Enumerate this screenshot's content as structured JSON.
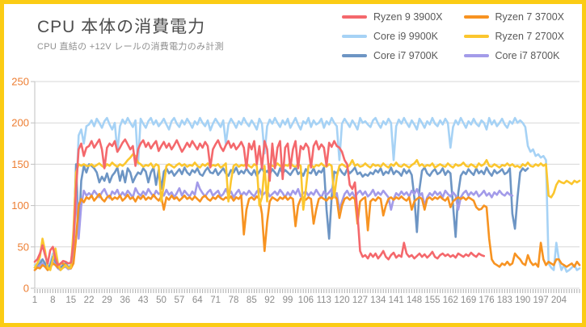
{
  "title": "CPU 本体の消費電力",
  "subtitle": "CPU 直結の +12V レールの消費電力のみ計測",
  "colors": {
    "frame_border": "#FBCC14",
    "background": "#ffffff",
    "title_text": "#4d4d4d",
    "subtitle_text": "#8f8f8f",
    "legend_text": "#595959",
    "y_axis_labels": "#ED7D31",
    "x_axis_labels": "#8c8c8c",
    "gridline": "#d7d7d7",
    "axis_line": "#c0c0c0",
    "tick": "#ababab"
  },
  "chart_data": {
    "type": "line",
    "title": "CPU 本体の消費電力",
    "subtitle": "CPU 直結の +12V レールの消費電力のみ計測",
    "xlabel": "",
    "ylabel": "",
    "unit_hint": "watts on +12V CPU rail, x = sample number (seconds)",
    "ymin": 0,
    "ymax": 250,
    "yticks": [
      0,
      50,
      100,
      150,
      200,
      250
    ],
    "n_samples": 212,
    "xtick_labels": [
      1,
      8,
      15,
      22,
      29,
      36,
      43,
      50,
      57,
      64,
      71,
      78,
      85,
      92,
      99,
      106,
      113,
      120,
      127,
      134,
      141,
      148,
      155,
      162,
      169,
      176,
      183,
      190,
      197,
      204
    ],
    "grid": true,
    "legend_position": "top-right",
    "stroke_width": 2.6,
    "draw_order": [
      2,
      4,
      5,
      1,
      3,
      0
    ],
    "series": [
      {
        "name": "Ryzen 9 3900X",
        "color": "#F4686C",
        "values": [
          32,
          35,
          42,
          52,
          40,
          30,
          46,
          50,
          36,
          28,
          30,
          33,
          32,
          30,
          31,
          55,
          120,
          168,
          175,
          160,
          170,
          172,
          178,
          170,
          175,
          180,
          168,
          145,
          170,
          175,
          172,
          178,
          165,
          170,
          176,
          180,
          174,
          168,
          172,
          148,
          168,
          175,
          179,
          171,
          176,
          169,
          174,
          178,
          166,
          172,
          177,
          170,
          175,
          168,
          173,
          179,
          172,
          165,
          170,
          176,
          171,
          178,
          173,
          168,
          175,
          170,
          177,
          172,
          146,
          168,
          174,
          179,
          171,
          166,
          173,
          178,
          170,
          175,
          168,
          172,
          177,
          170,
          145,
          175,
          168,
          178,
          150,
          172,
          145,
          178,
          168,
          130,
          175,
          145,
          170,
          178,
          132,
          170,
          175,
          145,
          168,
          178,
          145,
          172,
          168,
          175,
          170,
          146,
          172,
          178,
          168,
          174,
          170,
          148,
          176,
          171,
          178,
          172,
          170,
          165,
          155,
          150,
          125,
          120,
          128,
          90,
          45,
          38,
          40,
          36,
          42,
          38,
          42,
          36,
          40,
          45,
          38,
          35,
          40,
          43,
          37,
          40,
          38,
          55,
          42,
          38,
          40,
          36,
          39,
          42,
          38,
          41,
          37,
          40,
          44,
          38,
          36,
          40,
          42,
          39,
          41,
          38,
          40,
          37,
          42,
          40,
          38,
          41,
          39,
          43,
          40,
          38,
          42,
          40,
          39
        ]
      },
      {
        "name": "Ryzen 7 3700X",
        "color": "#F79321",
        "values": [
          22,
          25,
          24,
          28,
          26,
          22,
          25,
          30,
          28,
          25,
          30,
          30,
          28,
          25,
          24,
          30,
          60,
          100,
          108,
          104,
          110,
          108,
          112,
          106,
          110,
          114,
          108,
          105,
          110,
          112,
          107,
          110,
          108,
          112,
          106,
          109,
          113,
          108,
          110,
          105,
          111,
          108,
          112,
          107,
          110,
          108,
          113,
          109,
          106,
          111,
          95,
          110,
          107,
          112,
          108,
          110,
          106,
          109,
          112,
          108,
          110,
          107,
          111,
          108,
          105,
          110,
          112,
          108,
          106,
          110,
          108,
          112,
          109,
          107,
          110,
          108,
          111,
          106,
          110,
          108,
          112,
          65,
          95,
          108,
          110,
          107,
          111,
          108,
          90,
          45,
          80,
          105,
          110,
          108,
          106,
          110,
          108,
          111,
          107,
          110,
          108,
          75,
          100,
          108,
          110,
          107,
          110,
          108,
          78,
          95,
          108,
          110,
          108,
          106,
          110,
          108,
          112,
          108,
          85,
          100,
          108,
          110,
          107,
          110,
          108,
          78,
          105,
          108,
          110,
          70,
          105,
          108,
          106,
          110,
          108,
          88,
          100,
          108,
          110,
          107,
          110,
          108,
          111,
          108,
          106,
          110,
          95,
          105,
          108,
          110,
          108,
          95,
          108,
          110,
          107,
          110,
          108,
          111,
          108,
          106,
          110,
          98,
          105,
          108,
          110,
          108,
          110,
          107,
          110,
          108,
          106,
          98,
          95,
          96,
          100,
          98,
          60,
          35,
          30,
          28,
          26,
          30,
          28,
          32,
          28,
          30,
          42,
          38,
          35,
          30,
          28,
          40,
          32,
          28,
          30,
          26,
          55,
          35,
          28,
          32,
          30,
          28,
          35,
          35,
          30,
          28,
          26,
          28,
          30,
          26,
          32,
          28
        ]
      },
      {
        "name": "Core i9 9900K",
        "color": "#A6D2F5",
        "values": [
          28,
          30,
          34,
          30,
          28,
          26,
          30,
          42,
          32,
          26,
          25,
          28,
          30,
          26,
          28,
          45,
          110,
          185,
          192,
          175,
          196,
          198,
          203,
          196,
          205,
          200,
          194,
          202,
          206,
          198,
          192,
          200,
          165,
          196,
          204,
          199,
          206,
          200,
          195,
          203,
          150,
          205,
          199,
          194,
          202,
          206,
          198,
          203,
          196,
          200,
          205,
          198,
          192,
          202,
          206,
          199,
          195,
          203,
          198,
          205,
          200,
          194,
          202,
          198,
          206,
          200,
          196,
          203,
          191,
          199,
          205,
          200,
          195,
          203,
          175,
          198,
          205,
          200,
          194,
          202,
          198,
          206,
          200,
          196,
          203,
          198,
          192,
          205,
          199,
          163,
          196,
          204,
          199,
          206,
          200,
          195,
          203,
          198,
          205,
          194,
          200,
          206,
          198,
          192,
          202,
          199,
          206,
          195,
          203,
          198,
          200,
          205,
          194,
          202,
          198,
          206,
          200,
          196,
          155,
          199,
          205,
          200,
          195,
          203,
          198,
          192,
          206,
          200,
          202,
          198,
          195,
          203,
          206,
          199,
          194,
          202,
          198,
          205,
          200,
          155,
          196,
          204,
          199,
          206,
          200,
          195,
          203,
          198,
          192,
          205,
          200,
          194,
          202,
          198,
          206,
          199,
          196,
          203,
          198,
          205,
          200,
          170,
          195,
          203,
          198,
          206,
          200,
          194,
          202,
          198,
          205,
          199,
          196,
          203,
          200,
          192,
          206,
          198,
          203,
          196,
          200,
          205,
          198,
          194,
          202,
          199,
          206,
          200,
          203,
          200,
          195,
          172,
          165,
          168,
          160,
          162,
          158,
          160,
          155,
          30,
          25,
          22,
          55,
          35,
          22,
          28,
          20,
          22,
          25,
          28,
          22,
          24
        ]
      },
      {
        "name": "Ryzen 7 2700X",
        "color": "#FBC62E",
        "values": [
          25,
          30,
          38,
          60,
          45,
          25,
          22,
          35,
          48,
          30,
          22,
          25,
          28,
          24,
          25,
          70,
          140,
          150,
          148,
          150,
          148,
          148,
          150,
          147,
          149,
          151,
          148,
          146,
          150,
          148,
          152,
          149,
          147,
          150,
          148,
          151,
          155,
          158,
          162,
          160,
          152,
          150,
          147,
          149,
          148,
          151,
          146,
          150,
          148,
          105,
          125,
          148,
          150,
          148,
          146,
          149,
          151,
          148,
          150,
          147,
          149,
          148,
          152,
          148,
          146,
          150,
          148,
          151,
          147,
          149,
          148,
          150,
          146,
          148,
          151,
          105,
          130,
          148,
          150,
          147,
          149,
          148,
          151,
          148,
          146,
          150,
          148,
          100,
          110,
          148,
          105,
          150,
          148,
          147,
          151,
          148,
          146,
          149,
          148,
          152,
          148,
          147,
          150,
          148,
          95,
          120,
          148,
          150,
          146,
          149,
          148,
          151,
          148,
          147,
          150,
          148,
          110,
          135,
          148,
          150,
          148,
          146,
          149,
          155,
          148,
          150,
          147,
          148,
          151,
          148,
          146,
          150,
          148,
          149,
          147,
          151,
          148,
          146,
          150,
          148,
          152,
          148,
          147,
          150,
          148,
          146,
          149,
          151,
          155,
          148,
          150,
          147,
          149,
          148,
          151,
          146,
          148,
          150,
          148,
          147,
          151,
          148,
          146,
          150,
          148,
          149,
          152,
          148,
          147,
          150,
          148,
          146,
          151,
          148,
          150,
          155,
          148,
          147,
          150,
          148,
          146,
          149,
          148,
          151,
          148,
          150,
          147,
          148,
          146,
          150,
          148,
          152,
          148,
          147,
          150,
          148,
          151,
          148,
          150,
          112,
          110,
          115,
          125,
          130,
          128,
          127,
          130,
          128,
          126,
          130,
          128,
          130
        ]
      },
      {
        "name": "Core i7 9700K",
        "color": "#6D95C4",
        "values": [
          25,
          28,
          30,
          35,
          30,
          25,
          28,
          38,
          32,
          26,
          25,
          28,
          30,
          25,
          26,
          55,
          150,
          65,
          130,
          148,
          140,
          150,
          148,
          145,
          140,
          128,
          135,
          130,
          139,
          128,
          136,
          140,
          146,
          130,
          142,
          128,
          145,
          140,
          128,
          135,
          140,
          138,
          145,
          141,
          128,
          140,
          146,
          125,
          143,
          120,
          141,
          145,
          139,
          142,
          136,
          140,
          144,
          138,
          146,
          140,
          137,
          143,
          140,
          145,
          138,
          136,
          142,
          146,
          140,
          139,
          144,
          137,
          141,
          145,
          139,
          136,
          143,
          140,
          146,
          138,
          142,
          139,
          145,
          140,
          137,
          143,
          136,
          141,
          146,
          139,
          142,
          138,
          144,
          140,
          136,
          145,
          139,
          143,
          140,
          137,
          142,
          146,
          138,
          141,
          136,
          144,
          140,
          139,
          145,
          137,
          142,
          140,
          146,
          95,
          60,
          110,
          141,
          139,
          145,
          140,
          137,
          144,
          139,
          142,
          146,
          138,
          140,
          135,
          138,
          136,
          140,
          138,
          143,
          140,
          145,
          137,
          141,
          139,
          146,
          138,
          142,
          140,
          136,
          144,
          139,
          143,
          137,
          110,
          68,
          120,
          142,
          146,
          139,
          136,
          141,
          144,
          138,
          140,
          145,
          137,
          142,
          139,
          100,
          62,
          115,
          136,
          141,
          138,
          144,
          140,
          137,
          145,
          139,
          142,
          138,
          146,
          140,
          136,
          143,
          139,
          141,
          144,
          138,
          140,
          145,
          90,
          72,
          110,
          140,
          145,
          142,
          145
        ]
      },
      {
        "name": "Core i7 8700K",
        "color": "#A39BE9",
        "values": [
          22,
          25,
          28,
          30,
          26,
          22,
          25,
          32,
          28,
          24,
          22,
          25,
          26,
          23,
          24,
          50,
          115,
          60,
          100,
          118,
          112,
          115,
          112,
          118,
          114,
          110,
          116,
          120,
          113,
          109,
          117,
          114,
          119,
          111,
          116,
          112,
          118,
          114,
          110,
          121,
          115,
          112,
          117,
          113,
          120,
          115,
          111,
          118,
          114,
          116,
          112,
          119,
          113,
          116,
          110,
          115,
          121,
          112,
          118,
          114,
          111,
          117,
          113,
          128,
          120,
          115,
          111,
          116,
          119,
          112,
          115,
          118,
          111,
          114,
          120,
          113,
          117,
          110,
          115,
          119,
          112,
          116,
          113,
          118,
          114,
          111,
          117,
          120,
          112,
          115,
          118,
          111,
          114,
          117,
          113,
          119,
          115,
          110,
          116,
          112,
          118,
          114,
          120,
          111,
          115,
          117,
          112,
          116,
          113,
          119,
          114,
          110,
          117,
          113,
          116,
          120,
          111,
          115,
          95,
          105,
          114,
          118,
          112,
          116,
          110,
          115,
          118,
          113,
          117,
          111,
          114,
          119,
          112,
          116,
          113,
          118,
          114,
          110,
          95,
          108,
          115,
          112,
          117,
          113,
          116,
          111,
          118,
          114,
          120,
          112,
          115,
          100,
          110,
          115,
          112,
          117,
          113,
          116,
          110,
          118,
          114,
          111,
          116,
          112,
          95,
          110,
          115,
          118,
          112,
          116,
          113,
          117,
          111,
          114,
          118,
          112,
          115,
          110,
          116,
          113,
          118,
          114,
          112,
          116,
          113,
          112
        ]
      }
    ]
  }
}
